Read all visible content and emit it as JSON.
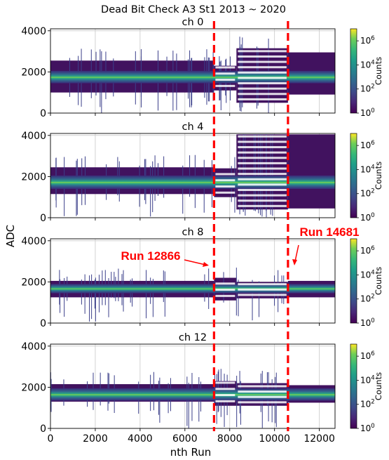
{
  "chart_data": {
    "type": "heatmap",
    "title": "Dead Bit Check A3 St1 2013 ~ 2020",
    "xlabel": "nth Run",
    "ylabel": "ADC",
    "xlim": [
      0,
      12700
    ],
    "ylim": [
      0,
      4096
    ],
    "x_ticks": [
      "0",
      "2000",
      "4000",
      "6000",
      "8000",
      "10000",
      "12000"
    ],
    "y_ticks": [
      "0",
      "2000",
      "4000"
    ],
    "grid": true,
    "colormap": "viridis",
    "colorbar": {
      "label": "Counts",
      "scale": "log",
      "tick_base": "10",
      "tick_exponents": [
        "0",
        "2",
        "4",
        "6"
      ]
    },
    "panels": [
      {
        "title": "ch 0",
        "core_adc": [
          1450,
          2050
        ],
        "segments": [
          {
            "x": [
              0,
              7300
            ],
            "adc": [
              1000,
              2550
            ]
          },
          {
            "x": [
              7300,
              8300
            ],
            "adc": [
              1100,
              2300
            ]
          },
          {
            "x": [
              8300,
              10600
            ],
            "adc": [
              500,
              3150
            ]
          },
          {
            "x": [
              10600,
              12700
            ],
            "adc": [
              900,
              2950
            ]
          }
        ]
      },
      {
        "title": "ch 4",
        "core_adc": [
          1400,
          2050
        ],
        "segments": [
          {
            "x": [
              0,
              7300
            ],
            "adc": [
              1150,
              2450
            ]
          },
          {
            "x": [
              7300,
              8300
            ],
            "adc": [
              1000,
              2400
            ]
          },
          {
            "x": [
              8300,
              10600
            ],
            "adc": [
              400,
              4050
            ]
          },
          {
            "x": [
              10600,
              12700
            ],
            "adc": [
              450,
              4050
            ]
          }
        ]
      },
      {
        "title": "ch 8",
        "core_adc": [
          1450,
          1900
        ],
        "segments": [
          {
            "x": [
              0,
              7300
            ],
            "adc": [
              1250,
              2050
            ]
          },
          {
            "x": [
              7300,
              8300
            ],
            "adc": [
              1100,
              2200
            ]
          },
          {
            "x": [
              8300,
              10600
            ],
            "adc": [
              1200,
              2000
            ]
          },
          {
            "x": [
              10600,
              12700
            ],
            "adc": [
              1250,
              2050
            ]
          }
        ]
      },
      {
        "title": "ch 12",
        "core_adc": [
          1350,
          1950
        ],
        "segments": [
          {
            "x": [
              0,
              7300
            ],
            "adc": [
              1300,
              2150
            ]
          },
          {
            "x": [
              7300,
              8300
            ],
            "adc": [
              1100,
              2300
            ]
          },
          {
            "x": [
              8300,
              10600
            ],
            "adc": [
              1100,
              2200
            ]
          },
          {
            "x": [
              10600,
              12700
            ],
            "adc": [
              1250,
              2100
            ]
          }
        ]
      }
    ],
    "markers": [
      {
        "label": "Run 12866",
        "run": 7300,
        "color": "#ff0000",
        "linestyle": "dashed"
      },
      {
        "label": "Run 14681",
        "run": 10600,
        "color": "#ff0000",
        "linestyle": "dashed"
      }
    ]
  }
}
